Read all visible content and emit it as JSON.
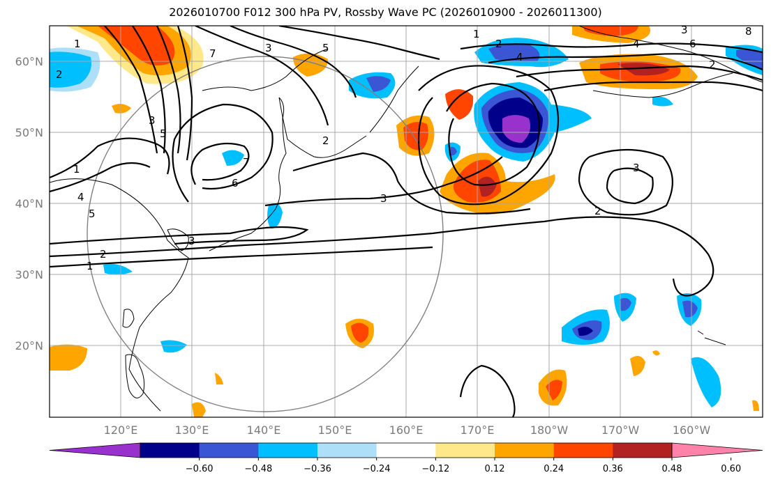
{
  "title": "2026010700 F012 300 hPa PV, Rossby Wave PC (2026010900 - 2026011300)",
  "lat_labels": [
    "60°N",
    "50°N",
    "40°N",
    "30°N",
    "20°N"
  ],
  "lon_labels": [
    "120°E",
    "130°E",
    "140°E",
    "150°E",
    "160°E",
    "170°E",
    "180°W",
    "170°W",
    "160°W"
  ],
  "colorbar": {
    "colors": [
      "#9932cc",
      "#00008b",
      "#3a56d4",
      "#00bfff",
      "#ade0f8",
      "#ffffff",
      "#ffe88a",
      "#ffa500",
      "#ff4500",
      "#b22222",
      "#ff82ab"
    ],
    "ticks": [
      "−0.60",
      "−0.48",
      "−0.36",
      "−0.24",
      "−0.12",
      "0.12",
      "0.24",
      "0.36",
      "0.48",
      "0.60"
    ]
  },
  "contour_labels": [
    "1",
    "2",
    "3",
    "4",
    "5",
    "6",
    "7",
    "8",
    "1",
    "2",
    "3",
    "5",
    "3",
    "4",
    "2",
    "2",
    "3",
    "2",
    "3",
    "3",
    "1",
    "6",
    "7",
    "5",
    "4",
    "2",
    "1"
  ]
}
